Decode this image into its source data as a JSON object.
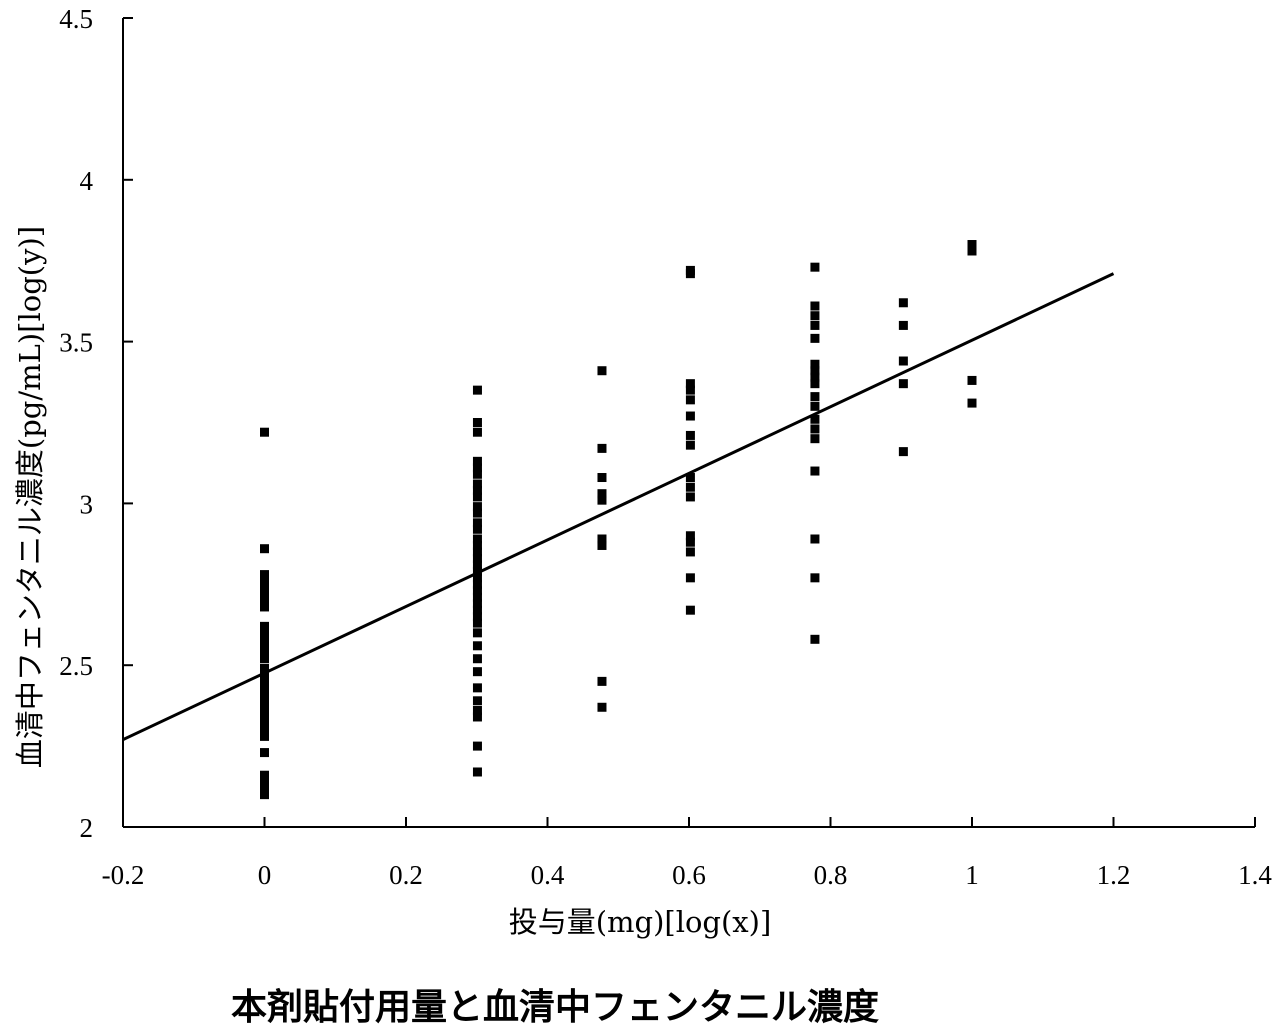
{
  "caption": "本剤貼付用量と血清中フェンタニル濃度",
  "chart_data": {
    "type": "scatter",
    "title": "",
    "xlabel": "投与量(mg)[log(x)]",
    "ylabel": "血清中フェンタニル濃度(pg/mL)[log(y)]",
    "xlim": [
      -0.2,
      1.4
    ],
    "ylim": [
      2,
      4.5
    ],
    "x_ticks": [
      "-0.2",
      "0",
      "0.2",
      "0.4",
      "0.6",
      "0.8",
      "1",
      "1.2",
      "1.4"
    ],
    "y_ticks": [
      "2",
      "2.5",
      "3",
      "3.5",
      "4",
      "4.5"
    ],
    "grid": false,
    "colors": {
      "points": "#000000",
      "line": "#000000"
    },
    "points": [
      [
        0,
        3.22
      ],
      [
        0,
        2.86
      ],
      [
        0,
        2.78
      ],
      [
        0,
        2.76
      ],
      [
        0,
        2.75
      ],
      [
        0,
        2.73
      ],
      [
        0,
        2.72
      ],
      [
        0,
        2.7
      ],
      [
        0,
        2.68
      ],
      [
        0,
        2.62
      ],
      [
        0,
        2.6
      ],
      [
        0,
        2.58
      ],
      [
        0,
        2.56
      ],
      [
        0,
        2.54
      ],
      [
        0,
        2.52
      ],
      [
        0,
        2.49
      ],
      [
        0,
        2.48
      ],
      [
        0,
        2.47
      ],
      [
        0,
        2.46
      ],
      [
        0,
        2.45
      ],
      [
        0,
        2.44
      ],
      [
        0,
        2.43
      ],
      [
        0,
        2.42
      ],
      [
        0,
        2.41
      ],
      [
        0,
        2.4
      ],
      [
        0,
        2.38
      ],
      [
        0,
        2.36
      ],
      [
        0,
        2.34
      ],
      [
        0,
        2.32
      ],
      [
        0,
        2.3
      ],
      [
        0,
        2.28
      ],
      [
        0,
        2.23
      ],
      [
        0,
        2.16
      ],
      [
        0,
        2.14
      ],
      [
        0,
        2.12
      ],
      [
        0,
        2.1
      ],
      [
        0.301,
        3.35
      ],
      [
        0.301,
        3.25
      ],
      [
        0.301,
        3.22
      ],
      [
        0.301,
        3.13
      ],
      [
        0.301,
        3.11
      ],
      [
        0.301,
        3.09
      ],
      [
        0.301,
        3.06
      ],
      [
        0.301,
        3.04
      ],
      [
        0.301,
        3.02
      ],
      [
        0.301,
        2.99
      ],
      [
        0.301,
        2.97
      ],
      [
        0.301,
        2.94
      ],
      [
        0.301,
        2.92
      ],
      [
        0.301,
        2.89
      ],
      [
        0.301,
        2.87
      ],
      [
        0.301,
        2.85
      ],
      [
        0.301,
        2.83
      ],
      [
        0.301,
        2.81
      ],
      [
        0.301,
        2.79
      ],
      [
        0.301,
        2.77
      ],
      [
        0.301,
        2.75
      ],
      [
        0.301,
        2.73
      ],
      [
        0.301,
        2.71
      ],
      [
        0.301,
        2.69
      ],
      [
        0.301,
        2.67
      ],
      [
        0.301,
        2.65
      ],
      [
        0.301,
        2.63
      ],
      [
        0.301,
        2.6
      ],
      [
        0.301,
        2.56
      ],
      [
        0.301,
        2.52
      ],
      [
        0.301,
        2.48
      ],
      [
        0.301,
        2.43
      ],
      [
        0.301,
        2.39
      ],
      [
        0.301,
        2.36
      ],
      [
        0.301,
        2.34
      ],
      [
        0.301,
        2.25
      ],
      [
        0.301,
        2.17
      ],
      [
        0.477,
        3.41
      ],
      [
        0.477,
        3.17
      ],
      [
        0.477,
        3.08
      ],
      [
        0.477,
        3.03
      ],
      [
        0.477,
        3.01
      ],
      [
        0.477,
        2.89
      ],
      [
        0.477,
        2.87
      ],
      [
        0.477,
        2.45
      ],
      [
        0.477,
        2.37
      ],
      [
        0.602,
        3.72
      ],
      [
        0.602,
        3.71
      ],
      [
        0.602,
        3.37
      ],
      [
        0.602,
        3.35
      ],
      [
        0.602,
        3.32
      ],
      [
        0.602,
        3.27
      ],
      [
        0.602,
        3.21
      ],
      [
        0.602,
        3.18
      ],
      [
        0.602,
        3.08
      ],
      [
        0.602,
        3.05
      ],
      [
        0.602,
        3.02
      ],
      [
        0.602,
        2.9
      ],
      [
        0.602,
        2.88
      ],
      [
        0.602,
        2.85
      ],
      [
        0.602,
        2.77
      ],
      [
        0.602,
        2.67
      ],
      [
        0.778,
        3.73
      ],
      [
        0.778,
        3.61
      ],
      [
        0.778,
        3.58
      ],
      [
        0.778,
        3.55
      ],
      [
        0.778,
        3.51
      ],
      [
        0.778,
        3.43
      ],
      [
        0.778,
        3.41
      ],
      [
        0.778,
        3.39
      ],
      [
        0.778,
        3.37
      ],
      [
        0.778,
        3.33
      ],
      [
        0.778,
        3.3
      ],
      [
        0.778,
        3.26
      ],
      [
        0.778,
        3.23
      ],
      [
        0.778,
        3.2
      ],
      [
        0.778,
        3.1
      ],
      [
        0.778,
        2.89
      ],
      [
        0.778,
        2.77
      ],
      [
        0.778,
        2.58
      ],
      [
        0.903,
        3.62
      ],
      [
        0.903,
        3.55
      ],
      [
        0.903,
        3.44
      ],
      [
        0.903,
        3.37
      ],
      [
        0.903,
        3.16
      ],
      [
        1,
        3.8
      ],
      [
        1,
        3.78
      ],
      [
        1,
        3.38
      ],
      [
        1,
        3.31
      ]
    ],
    "regression_line": {
      "x": [
        -0.2,
        1.2
      ],
      "y": [
        2.27,
        3.71
      ]
    }
  }
}
